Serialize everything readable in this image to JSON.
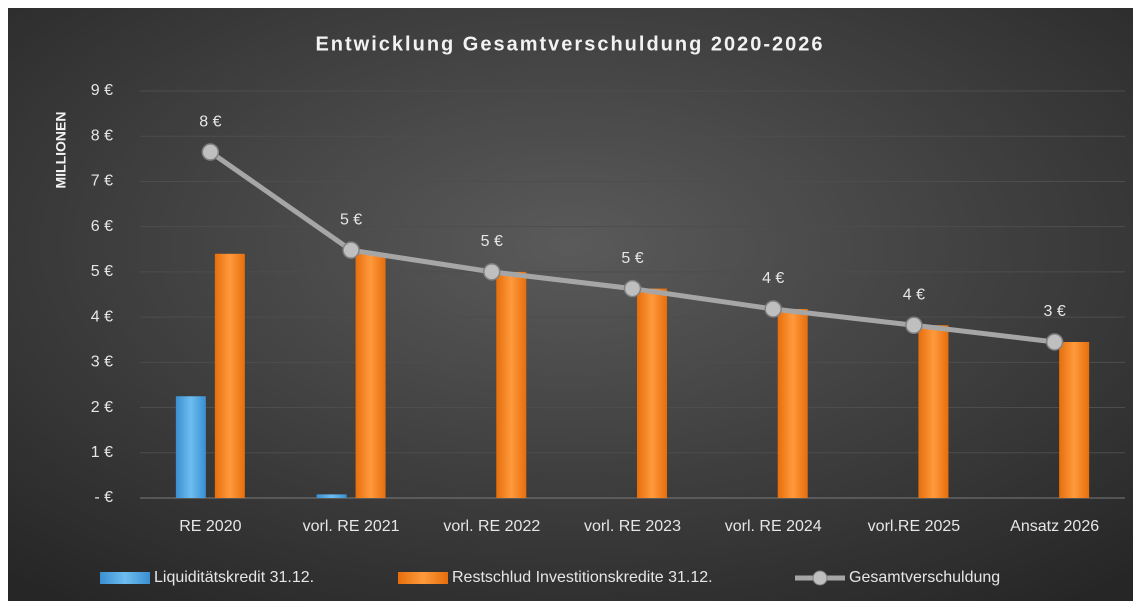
{
  "chart_data": {
    "type": "bar_line",
    "title": "Entwicklung Gesamtverschuldung 2020-2026",
    "y_label": "MILLIONEN",
    "categories": [
      "RE 2020",
      "vorl. RE 2021",
      "vorl. RE 2022",
      "vorl. RE 2023",
      "vorl. RE 2024",
      "vorl.RE 2025",
      "Ansatz 2026"
    ],
    "series": [
      {
        "name": "Liquiditätskredit 31.12.",
        "type": "bar",
        "color": "#4ea6e0",
        "values": [
          2.25,
          0.08,
          0,
          0,
          0,
          0,
          0
        ]
      },
      {
        "name": "Restschlud Investitionskredite 31.12.",
        "type": "bar",
        "color": "#f6821f",
        "values": [
          5.4,
          5.4,
          5.0,
          4.63,
          4.18,
          3.82,
          3.45
        ]
      },
      {
        "name": "Gesamtverschuldung",
        "type": "line",
        "color": "#a6a6a6",
        "values": [
          7.65,
          5.48,
          5.0,
          4.63,
          4.18,
          3.82,
          3.45
        ],
        "value_labels": [
          "8 €",
          "5 €",
          "5 €",
          "5 €",
          "4 €",
          "4 €",
          "3 €"
        ]
      }
    ],
    "ylim": [
      0,
      9
    ],
    "yticks": [
      {
        "value": 0,
        "label": "- €"
      },
      {
        "value": 1,
        "label": "1 €"
      },
      {
        "value": 2,
        "label": "2 €"
      },
      {
        "value": 3,
        "label": "3 €"
      },
      {
        "value": 4,
        "label": "4 €"
      },
      {
        "value": 5,
        "label": "5 €"
      },
      {
        "value": 6,
        "label": "6 €"
      },
      {
        "value": 7,
        "label": "7 €"
      },
      {
        "value": 8,
        "label": "8 €"
      },
      {
        "value": 9,
        "label": "9 €"
      }
    ],
    "grid": true,
    "legend": "bottom"
  }
}
